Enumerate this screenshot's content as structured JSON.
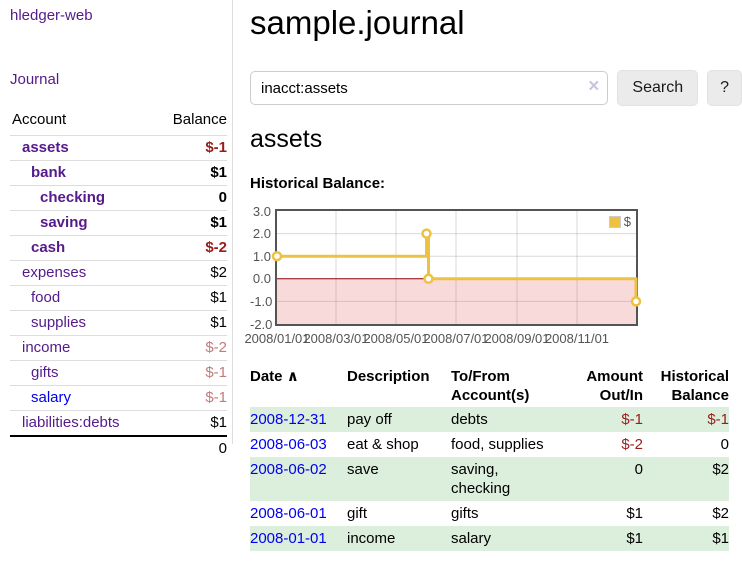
{
  "colors": {
    "link_purple": "#551a8b",
    "link_blue": "#0000ee",
    "negative_strong": "#9a1b1b",
    "negative_soft": "#c07b7b",
    "row_stripe_green": "#dceedc",
    "series_gold": "#edc240",
    "negative_region_pink": "#f9dada",
    "zero_line_dark_red": "#8b0000"
  },
  "sidebar": {
    "brand": "hledger-web",
    "nav_journal": "Journal",
    "accounts_table": {
      "col_account": "Account",
      "col_balance": "Balance",
      "rows": [
        {
          "name": "assets",
          "depth": 1,
          "bold": true,
          "balance": "$-1",
          "balance_class": "neg"
        },
        {
          "name": "bank",
          "depth": 2,
          "bold": true,
          "balance": "$1",
          "balance_class": "pos"
        },
        {
          "name": "checking",
          "depth": 3,
          "bold": true,
          "balance": "0",
          "balance_class": "pos"
        },
        {
          "name": "saving",
          "depth": 3,
          "bold": true,
          "balance": "$1",
          "balance_class": "pos"
        },
        {
          "name": "cash",
          "depth": 2,
          "bold": true,
          "balance": "$-2",
          "balance_class": "neg"
        },
        {
          "name": "expenses",
          "depth": 1,
          "bold": false,
          "balance": "$2",
          "balance_class": "pos"
        },
        {
          "name": "food",
          "depth": 2,
          "bold": false,
          "balance": "$1",
          "balance_class": "pos"
        },
        {
          "name": "supplies",
          "depth": 2,
          "bold": false,
          "balance": "$1",
          "balance_class": "pos"
        },
        {
          "name": "income",
          "depth": 1,
          "bold": false,
          "balance": "$-2",
          "balance_class": "negsoft"
        },
        {
          "name": "gifts",
          "depth": 2,
          "bold": false,
          "balance": "$-1",
          "balance_class": "negsoft"
        },
        {
          "name": "salary",
          "depth": 2,
          "bold": false,
          "link_color": "blue",
          "balance": "$-1",
          "balance_class": "negsoft"
        },
        {
          "name": "liabilities:debts",
          "depth": 1,
          "bold": false,
          "balance": "$1",
          "balance_class": "pos"
        }
      ],
      "total": "0"
    }
  },
  "header": {
    "title": "sample.journal"
  },
  "search": {
    "query": "inacct:assets",
    "clear_icon": "×",
    "button_label": "Search",
    "help_label": "?"
  },
  "account_page": {
    "heading": "assets",
    "chart_title": "Historical Balance:"
  },
  "chart_data": {
    "type": "line",
    "step": true,
    "title": "Historical Balance:",
    "series": [
      {
        "name": "$",
        "color": "#edc240",
        "points": [
          [
            "2008-01-01",
            1
          ],
          [
            "2008-06-01",
            2
          ],
          [
            "2008-06-03",
            0
          ],
          [
            "2008-12-31",
            -1
          ]
        ]
      }
    ],
    "x_range": [
      "2008-01-01",
      "2008-12-31"
    ],
    "x_ticks": [
      {
        "date": "2008-01-01",
        "label": "2008/01/01"
      },
      {
        "date": "2008-03-01",
        "label": "2008/03/01"
      },
      {
        "date": "2008-05-01",
        "label": "2008/05/01"
      },
      {
        "date": "2008-07-01",
        "label": "2008/07/01"
      },
      {
        "date": "2008-09-01",
        "label": "2008/09/01"
      },
      {
        "date": "2008-11-01",
        "label": "2008/11/01"
      }
    ],
    "y_ticks": [
      "3.0",
      "2.0",
      "1.0",
      "0.0",
      "-1.0",
      "-2.0"
    ],
    "ylim": [
      -2,
      3
    ],
    "grid": true,
    "legend_position": "top-right",
    "negative_region_color": "#f9dada",
    "zero_line_color": "#8b0000"
  },
  "register": {
    "columns": [
      "Date",
      "Description",
      "To/From Account(s)",
      "Amount Out/In",
      "Historical Balance"
    ],
    "sort_icon": "∧",
    "rows": [
      {
        "date": "2008-12-31",
        "description": "pay off",
        "accounts": "debts",
        "amount": "$-1",
        "amount_negative": true,
        "balance": "$-1",
        "balance_negative": true
      },
      {
        "date": "2008-06-03",
        "description": "eat & shop",
        "accounts": "food, supplies",
        "amount": "$-2",
        "amount_negative": true,
        "balance": "0",
        "balance_negative": false
      },
      {
        "date": "2008-06-02",
        "description": "save",
        "accounts": "saving, checking",
        "amount": "0",
        "amount_negative": false,
        "balance": "$2",
        "balance_negative": false
      },
      {
        "date": "2008-06-01",
        "description": "gift",
        "accounts": "gifts",
        "amount": "$1",
        "amount_negative": false,
        "balance": "$2",
        "balance_negative": false
      },
      {
        "date": "2008-01-01",
        "description": "income",
        "accounts": "salary",
        "amount": "$1",
        "amount_negative": false,
        "balance": "$1",
        "balance_negative": false
      }
    ]
  }
}
